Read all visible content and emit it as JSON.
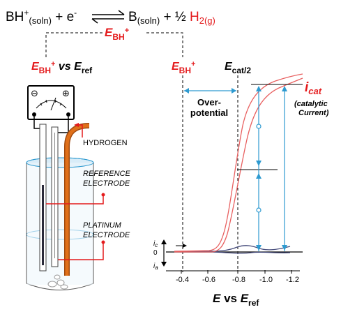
{
  "equation": {
    "bh": "BH",
    "bh_sup": "+",
    "soln": "(soln)",
    "plus1": " + e",
    "e_sup": "-",
    "b": "B",
    "b_soln": "(soln)",
    "plus_half": " + ½ ",
    "h2": "H",
    "h2_sub": "2(g)"
  },
  "labels": {
    "e": "E",
    "bh_sub": "BH",
    "plus": "+",
    "vs": " vs ",
    "ref": "ref",
    "ecat": "E",
    "ecat_sub": "cat/2",
    "over1": "Over-",
    "over2": "potential",
    "icat_i": "i",
    "icat_sub": "cat",
    "catalytic1": "(catalytic",
    "catalytic2": "Current)",
    "hydrogen": "HYDROGEN",
    "reference1": "REFERENCE",
    "reference2": "ELECTRODE",
    "platinum1": "PLATINUM",
    "platinum2": "ELECTRODE",
    "ic": "i",
    "ic_sub": "c",
    "ia": "i",
    "ia_sub": "a",
    "zero": "0",
    "meter_minus": "⊖",
    "meter_plus": "⊕"
  },
  "axis": {
    "ticks": [
      "-0.4",
      "-0.6",
      "-0.8",
      "-1.0",
      "-1.2"
    ],
    "xlabel_e": "E",
    "xlabel_vs": " vs ",
    "xlabel_e2": "E",
    "xlabel_ref": "ref"
  },
  "colors": {
    "red": "#e41a1c",
    "blue": "#2e9ad0",
    "orange": "#e0701a",
    "curve": "#e86060",
    "baseline": "#444a7a",
    "black": "#000000"
  }
}
